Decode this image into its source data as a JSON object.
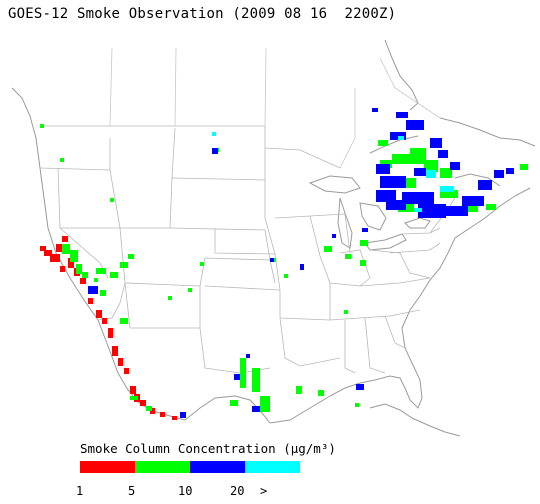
{
  "title": "GOES-12 Smoke Observation (2009 08 16  2200Z)",
  "legend": {
    "title": "Smoke Column Concentration (μg/m³)",
    "segments": [
      {
        "color": "#ff0000"
      },
      {
        "color": "#00ff00"
      },
      {
        "color": "#0000ff"
      },
      {
        "color": "#00ffff"
      }
    ],
    "ticks": [
      "1",
      "5",
      "10",
      "20",
      ">"
    ]
  },
  "colors": {
    "state_lines": "#b8b8b8",
    "coast_lines": "#9a9a9a",
    "background": "#ffffff"
  }
}
